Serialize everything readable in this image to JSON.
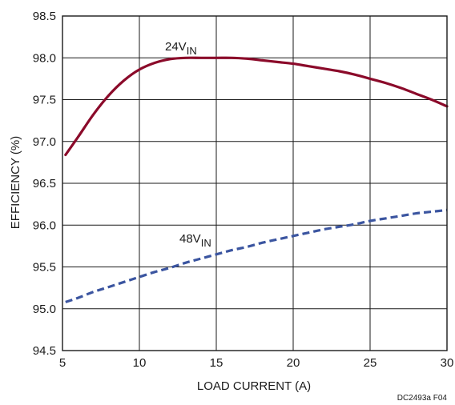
{
  "chart_data": {
    "type": "line",
    "xlabel": "LOAD CURRENT (A)",
    "ylabel": "EFFICIENCY (%)",
    "xlim": [
      5,
      30
    ],
    "ylim": [
      94.5,
      98.5
    ],
    "xticks": [
      5,
      10,
      15,
      20,
      25,
      30
    ],
    "yticks": [
      94.5,
      95.0,
      95.5,
      96.0,
      96.5,
      97.0,
      97.5,
      98.0,
      98.5
    ],
    "xtick_labels": [
      "5",
      "10",
      "15",
      "20",
      "25",
      "30"
    ],
    "ytick_labels": [
      "94.5",
      "95.0",
      "95.5",
      "96.0",
      "96.5",
      "97.0",
      "97.5",
      "98.0",
      "98.5"
    ],
    "grid": true,
    "legend": "none",
    "series": [
      {
        "label_main": "24V",
        "label_sub": "IN",
        "color": "#8b0a2a",
        "style": "solid",
        "x": [
          5.2,
          6,
          7,
          8,
          9,
          10,
          11,
          12,
          13,
          14,
          15,
          16,
          17,
          18,
          19,
          20,
          21,
          22,
          23,
          24,
          25,
          26,
          27,
          28,
          29,
          30
        ],
        "y": [
          96.84,
          97.05,
          97.32,
          97.55,
          97.73,
          97.86,
          97.94,
          97.985,
          98.0,
          98.0,
          98.0,
          98.0,
          97.99,
          97.97,
          97.95,
          97.93,
          97.9,
          97.87,
          97.84,
          97.8,
          97.75,
          97.7,
          97.64,
          97.57,
          97.5,
          97.42
        ]
      },
      {
        "label_main": "48V",
        "label_sub": "IN",
        "color": "#3b55a0",
        "style": "dashed",
        "x": [
          5.2,
          6,
          7,
          8,
          9,
          10,
          11,
          12,
          13,
          14,
          15,
          16,
          17,
          18,
          19,
          20,
          21,
          22,
          23,
          24,
          25,
          26,
          27,
          28,
          29,
          30
        ],
        "y": [
          95.08,
          95.13,
          95.2,
          95.26,
          95.32,
          95.38,
          95.44,
          95.49,
          95.55,
          95.6,
          95.65,
          95.7,
          95.74,
          95.79,
          95.83,
          95.87,
          95.91,
          95.95,
          95.98,
          96.01,
          96.05,
          96.08,
          96.11,
          96.14,
          96.16,
          96.18
        ]
      }
    ],
    "figure_id": "DC2493a F04"
  }
}
